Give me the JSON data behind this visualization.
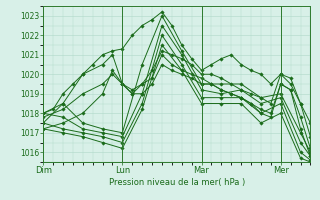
{
  "title": "",
  "xlabel": "Pression niveau de la mer( hPa )",
  "ylabel": "",
  "bg_color": "#d8f0e8",
  "grid_color": "#b0d8c8",
  "line_color": "#1a6b1a",
  "axis_color": "#2d7a2d",
  "text_color": "#1a6b1a",
  "ylim": [
    1015.5,
    1023.5
  ],
  "yticks": [
    1016,
    1017,
    1018,
    1019,
    1020,
    1021,
    1022,
    1023
  ],
  "day_labels": [
    "Dim",
    "Lun",
    "Mar",
    "Mer"
  ],
  "day_positions": [
    0,
    48,
    96,
    144
  ],
  "xlim_max": 162,
  "series": [
    [
      0,
      1018,
      6,
      1018.2,
      12,
      1019.0,
      18,
      1019.5,
      24,
      1020.0,
      30,
      1020.5,
      36,
      1021.0,
      42,
      1021.2,
      48,
      1021.3,
      54,
      1022.0,
      60,
      1022.5,
      66,
      1022.8,
      72,
      1023.2,
      78,
      1022.5,
      84,
      1021.5,
      90,
      1020.8,
      96,
      1020.2,
      102,
      1020.5,
      108,
      1020.8,
      114,
      1021.0,
      120,
      1020.5,
      126,
      1020.2,
      132,
      1020.0,
      138,
      1019.5,
      144,
      1020.0,
      150,
      1019.5,
      156,
      1018.5,
      162,
      1017.5
    ],
    [
      0,
      1018,
      12,
      1018.5,
      24,
      1017.5,
      36,
      1017.2,
      48,
      1017.0,
      60,
      1020.5,
      72,
      1023.0,
      84,
      1021.2,
      96,
      1019.5,
      108,
      1019.5,
      120,
      1019.5,
      132,
      1018.8,
      144,
      1019.0,
      156,
      1017.0,
      162,
      1016.0
    ],
    [
      0,
      1018,
      12,
      1017.8,
      24,
      1017.2,
      36,
      1017.0,
      48,
      1016.8,
      60,
      1019.0,
      72,
      1022.5,
      84,
      1021.0,
      96,
      1019.2,
      108,
      1019.0,
      120,
      1019.2,
      132,
      1018.5,
      144,
      1018.8,
      156,
      1016.5,
      162,
      1015.8
    ],
    [
      0,
      1017.5,
      12,
      1017.2,
      24,
      1017.0,
      36,
      1016.8,
      48,
      1016.5,
      60,
      1018.5,
      72,
      1022.0,
      84,
      1020.5,
      96,
      1018.8,
      108,
      1018.8,
      120,
      1018.8,
      132,
      1018.0,
      144,
      1018.5,
      156,
      1016.0,
      162,
      1015.6
    ],
    [
      0,
      1017.2,
      12,
      1017.0,
      24,
      1016.8,
      36,
      1016.5,
      48,
      1016.2,
      60,
      1018.2,
      72,
      1021.5,
      84,
      1020.2,
      96,
      1018.5,
      108,
      1018.5,
      120,
      1018.5,
      132,
      1017.5,
      144,
      1018.0,
      156,
      1015.7,
      162,
      1015.5
    ],
    [
      0,
      1017.8,
      12,
      1018.2,
      24,
      1019.0,
      36,
      1019.5,
      42,
      1020.0,
      48,
      1019.5,
      54,
      1019.2,
      60,
      1019.5,
      66,
      1019.8,
      72,
      1021.0,
      78,
      1020.5,
      84,
      1020.2,
      90,
      1020.0,
      96,
      1019.8,
      102,
      1019.5,
      108,
      1019.2,
      114,
      1019.0,
      120,
      1018.8,
      126,
      1018.5,
      132,
      1018.2,
      138,
      1018.0,
      144,
      1019.5,
      150,
      1019.2,
      156,
      1017.8,
      162,
      1016.2
    ],
    [
      0,
      1017.5,
      12,
      1018.5,
      24,
      1020.0,
      36,
      1020.5,
      42,
      1021.0,
      48,
      1019.5,
      54,
      1019.0,
      60,
      1019.5,
      66,
      1020.2,
      72,
      1021.2,
      78,
      1021.0,
      84,
      1020.8,
      90,
      1020.5,
      96,
      1020.0,
      102,
      1020.0,
      108,
      1019.8,
      114,
      1019.5,
      120,
      1019.2,
      126,
      1019.0,
      132,
      1018.8,
      138,
      1018.5,
      144,
      1020.0,
      150,
      1019.8,
      156,
      1018.5,
      162,
      1016.8
    ],
    [
      0,
      1017.2,
      12,
      1017.5,
      24,
      1018.0,
      36,
      1019.0,
      42,
      1020.2,
      48,
      1019.5,
      54,
      1019.0,
      60,
      1019.0,
      66,
      1019.5,
      72,
      1020.5,
      78,
      1020.2,
      84,
      1020.0,
      90,
      1019.8,
      96,
      1019.5,
      102,
      1019.5,
      108,
      1019.2,
      114,
      1019.0,
      120,
      1018.8,
      126,
      1018.5,
      132,
      1018.0,
      138,
      1017.8,
      144,
      1019.5,
      150,
      1019.2,
      156,
      1017.2,
      162,
      1015.8
    ]
  ]
}
